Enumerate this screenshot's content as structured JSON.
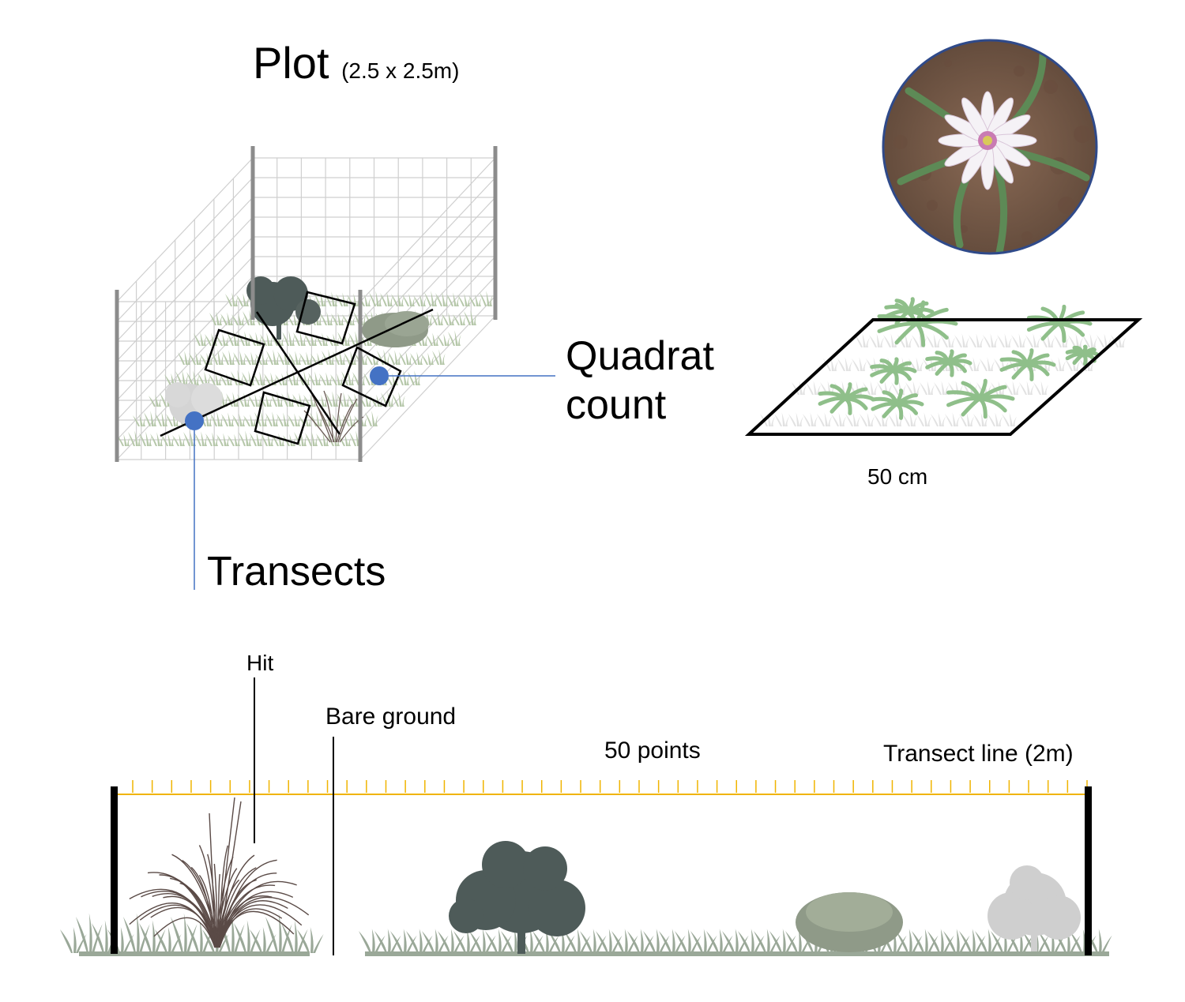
{
  "plot": {
    "title": "Plot",
    "dimensions": "(2.5 x 2.5m)"
  },
  "quadrat": {
    "label": "Quadrat count",
    "size_label": "50 cm"
  },
  "transects": {
    "label": "Transects"
  },
  "transect_detail": {
    "hit_label": "Hit",
    "bare_ground_label": "Bare ground",
    "points_label": "50 points",
    "line_label": "Transect line (2m)",
    "point_count": 50
  },
  "colors": {
    "accent_blue": "#4472c4",
    "tick_yellow": "#f0b400",
    "grass": "#9aa898",
    "shrub_dark": "#4e5b59",
    "frame_post": "#8c8c8c",
    "grid_line": "#c8c8c8",
    "quadrat_plant": "#8fbf8a"
  }
}
